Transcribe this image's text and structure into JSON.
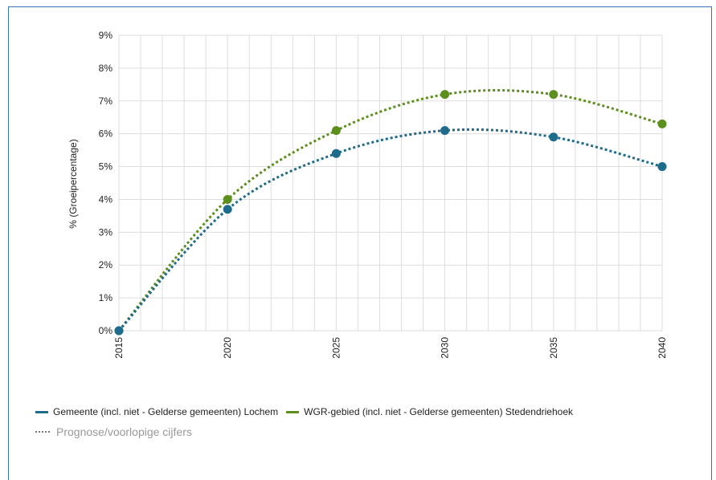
{
  "chart_data": {
    "type": "line",
    "ylabel": "% (Groeipercentage)",
    "xlabel": "",
    "x": [
      2015,
      2020,
      2025,
      2030,
      2035,
      2040
    ],
    "x_ticks": [
      "2015",
      "2020",
      "2025",
      "2030",
      "2035",
      "2040"
    ],
    "y_ticks": [
      "0%",
      "1%",
      "2%",
      "3%",
      "4%",
      "5%",
      "6%",
      "7%",
      "8%",
      "9%"
    ],
    "ylim": [
      0,
      9
    ],
    "grid": true,
    "line_style": "dotted",
    "legend_position": "bottom",
    "series": [
      {
        "name": "Gemeente (incl. niet - Gelderse gemeenten) Lochem",
        "color": "#1f6b8c",
        "values": [
          0,
          3.7,
          5.4,
          6.1,
          5.9,
          5.0
        ]
      },
      {
        "name": "WGR-gebied (incl. niet - Gelderse gemeenten) Stedendriehoek",
        "color": "#5c8f1e",
        "values": [
          0,
          4.0,
          6.1,
          7.2,
          7.2,
          6.3
        ]
      }
    ],
    "note": "Prognose/voorlopige cijfers"
  }
}
